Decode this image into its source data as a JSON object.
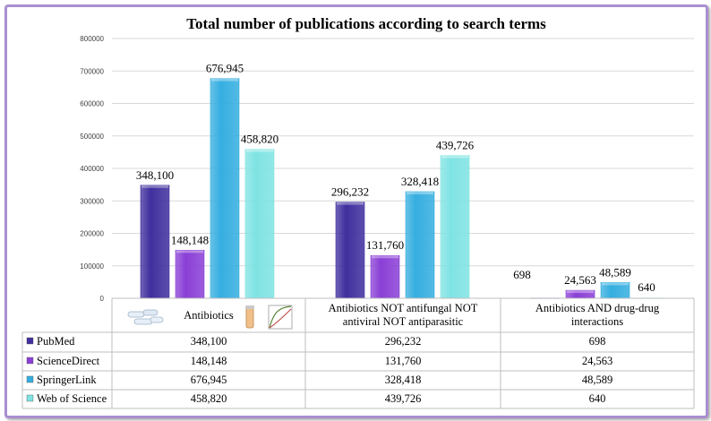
{
  "chart_data": {
    "type": "bar",
    "title": "Total number of publications according to search terms",
    "xlabel": "",
    "ylabel": "",
    "ylim": [
      0,
      800000
    ],
    "yticks": [
      0,
      100000,
      200000,
      300000,
      400000,
      500000,
      600000,
      700000,
      800000
    ],
    "ytick_labels": [
      "0",
      "100000",
      "200000",
      "300000",
      "400000",
      "500000",
      "600000",
      "700000",
      "800000"
    ],
    "grid": true,
    "legend": "bottom-left data table",
    "categories": [
      [
        "Antibiotics"
      ],
      [
        "Antibiotics NOT antifungal NOT",
        "antiviral NOT antiparasitic"
      ],
      [
        "Antibiotics AND drug-drug",
        "interactions"
      ]
    ],
    "series": [
      {
        "name": "PubMed",
        "color": "#3f2f9e",
        "values": [
          348100,
          296232,
          698
        ],
        "labels": [
          "348,100",
          "296,232",
          "698"
        ]
      },
      {
        "name": "ScienceDirect",
        "color": "#8a3fd6",
        "values": [
          148148,
          131760,
          24563
        ],
        "labels": [
          "148,148",
          "131,760",
          "24,563"
        ]
      },
      {
        "name": "SpringerLink",
        "color": "#35aee0",
        "values": [
          676945,
          328418,
          48589
        ],
        "labels": [
          "676,945",
          "328,418",
          "48,589"
        ]
      },
      {
        "name": "Web of Science",
        "color": "#7fe3e3",
        "values": [
          458820,
          439726,
          640
        ],
        "labels": [
          "458,820",
          "439,726",
          "640"
        ]
      }
    ]
  }
}
